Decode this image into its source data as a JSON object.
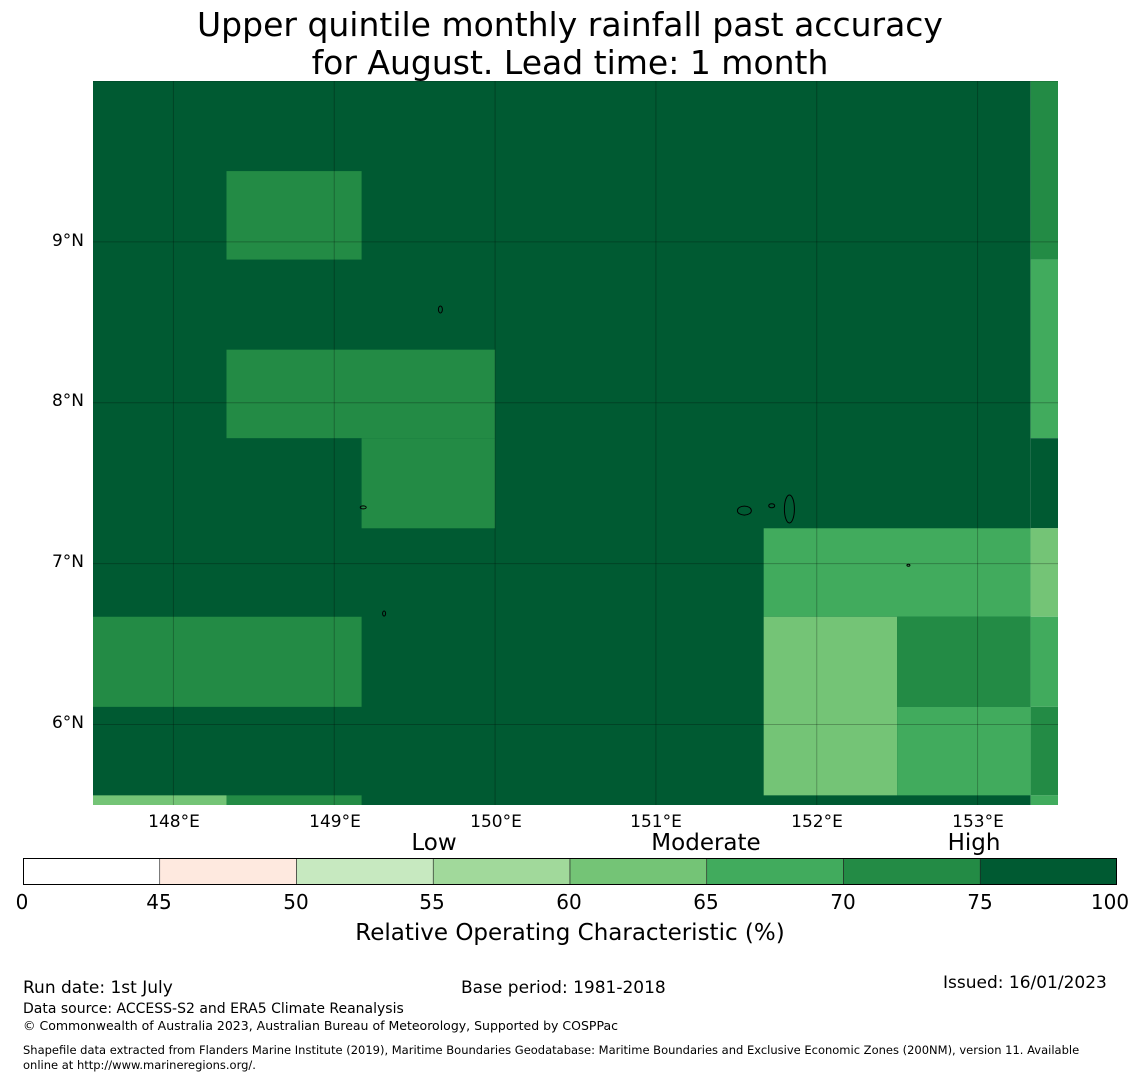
{
  "title": {
    "line1": "Upper quintile monthly rainfall past accuracy",
    "line2": "for August. Lead time: 1 month"
  },
  "map": {
    "lon_range": [
      147.5,
      153.5
    ],
    "lat_range": [
      5.5,
      10.0
    ],
    "lon_ticks": [
      "148°E",
      "149°E",
      "150°E",
      "151°E",
      "152°E",
      "153°E"
    ],
    "lat_ticks": [
      "9°N",
      "8°N",
      "7°N",
      "6°N"
    ],
    "grid": true,
    "colors": {
      "roc_45_50": "#fee9df",
      "roc_50_55": "#c7e9c0",
      "roc_55_60": "#a1d99b",
      "roc_60_65": "#74c476",
      "roc_65_70": "#41ab5d",
      "roc_70_75": "#238b45",
      "roc_75_100": "#005a32"
    },
    "cells": [
      {
        "lon": [
          147.5,
          153.33
        ],
        "lat": [
          5.5,
          10.0
        ],
        "class": "roc_75_100"
      },
      {
        "lon": [
          148.33,
          149.17
        ],
        "lat": [
          8.89,
          9.44
        ],
        "class": "roc_70_75"
      },
      {
        "lon": [
          148.33,
          150.0
        ],
        "lat": [
          7.78,
          8.33
        ],
        "class": "roc_70_75"
      },
      {
        "lon": [
          149.17,
          150.0
        ],
        "lat": [
          7.22,
          7.78
        ],
        "class": "roc_70_75"
      },
      {
        "lon": [
          147.5,
          149.17
        ],
        "lat": [
          6.11,
          6.67
        ],
        "class": "roc_70_75"
      },
      {
        "lon": [
          147.5,
          148.33
        ],
        "lat": [
          5.5,
          5.56
        ],
        "class": "roc_60_65"
      },
      {
        "lon": [
          148.33,
          149.17
        ],
        "lat": [
          5.5,
          5.56
        ],
        "class": "roc_70_75"
      },
      {
        "lon": [
          151.67,
          153.33
        ],
        "lat": [
          6.67,
          7.22
        ],
        "class": "roc_65_70"
      },
      {
        "lon": [
          151.67,
          152.5
        ],
        "lat": [
          5.56,
          6.67
        ],
        "class": "roc_60_65"
      },
      {
        "lon": [
          152.5,
          153.33
        ],
        "lat": [
          6.11,
          6.67
        ],
        "class": "roc_70_75"
      },
      {
        "lon": [
          152.5,
          153.33
        ],
        "lat": [
          5.56,
          6.11
        ],
        "class": "roc_65_70"
      },
      {
        "lon": [
          153.33,
          153.5
        ],
        "lat": [
          8.89,
          10.0
        ],
        "class": "roc_70_75"
      },
      {
        "lon": [
          153.33,
          153.5
        ],
        "lat": [
          7.78,
          8.89
        ],
        "class": "roc_65_70"
      },
      {
        "lon": [
          153.33,
          153.5
        ],
        "lat": [
          7.22,
          7.78
        ],
        "class": "roc_75_100"
      },
      {
        "lon": [
          153.33,
          153.5
        ],
        "lat": [
          6.67,
          7.22
        ],
        "class": "roc_60_65"
      },
      {
        "lon": [
          153.33,
          153.5
        ],
        "lat": [
          6.11,
          6.67
        ],
        "class": "roc_65_70"
      },
      {
        "lon": [
          153.33,
          153.5
        ],
        "lat": [
          5.56,
          6.11
        ],
        "class": "roc_70_75"
      },
      {
        "lon": [
          153.33,
          153.5
        ],
        "lat": [
          5.5,
          5.56
        ],
        "class": "roc_65_70"
      }
    ]
  },
  "colorbar": {
    "categories": [
      "Low",
      "Moderate",
      "High"
    ],
    "ticks": [
      "0",
      "45",
      "50",
      "55",
      "60",
      "65",
      "70",
      "75",
      "100"
    ],
    "colors": [
      "#ffffff",
      "#fee9df",
      "#c7e9c0",
      "#a1d99b",
      "#74c476",
      "#41ab5d",
      "#238b45",
      "#005a32"
    ],
    "label": "Relative Operating Characteristic (%)"
  },
  "footer": {
    "run_date": "Run date: 1st July",
    "base_period": "Base period: 1981-2018",
    "issued": "Issued: 16/01/2023",
    "data_source": "Data source: ACCESS-S2 and ERA5 Climate Reanalysis",
    "copyright": "© Commonwealth of Australia 2023, Australian Bureau of Meteorology, Supported by COSPPac",
    "shapefile_line1": "Shapefile data extracted from Flanders Marine Institute (2019), Maritime Boundaries Geodatabase: Maritime Boundaries and Exclusive Economic Zones (200NM), version 11. Available",
    "shapefile_line2": "online at http://www.marineregions.org/."
  }
}
